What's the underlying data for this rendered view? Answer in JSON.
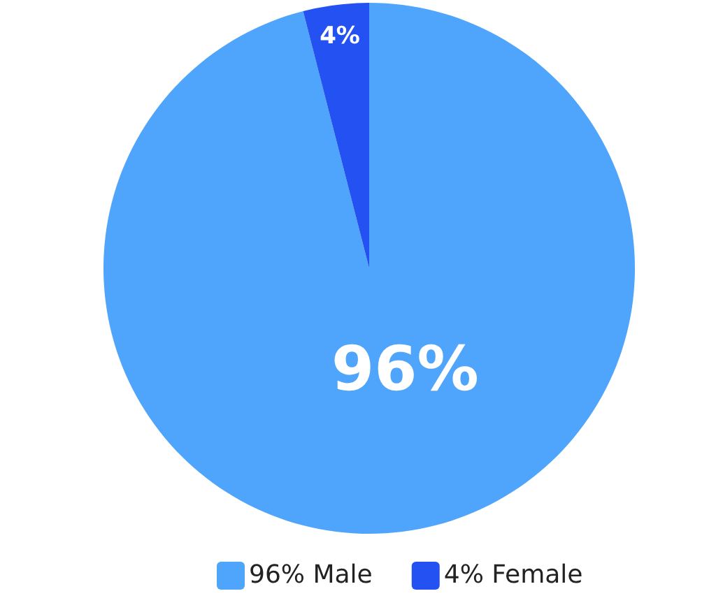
{
  "chart_data": {
    "type": "pie",
    "categories": [
      "96% Male",
      "4% Female"
    ],
    "values": [
      96,
      4
    ],
    "colors": [
      "#4ea5fb",
      "#2452f2"
    ],
    "value_labels": [
      "96%",
      "4%"
    ],
    "legend": "bottom"
  }
}
